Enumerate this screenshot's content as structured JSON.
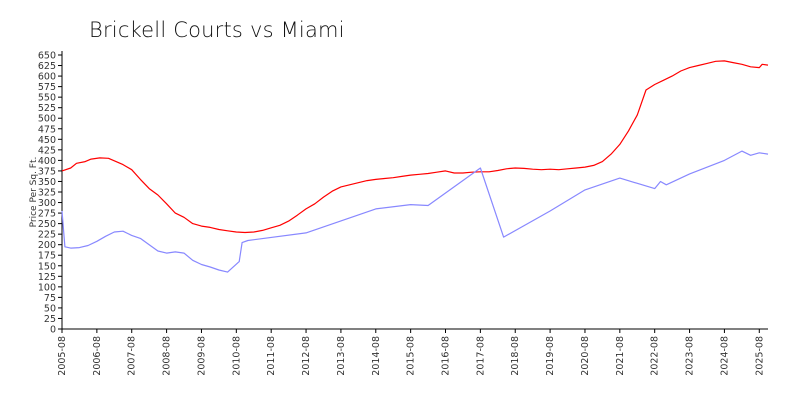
{
  "chart_data": {
    "type": "line",
    "title": "Brickell Courts vs Miami",
    "xlabel": "",
    "ylabel": "Price Per Sq. Ft.",
    "ylim": [
      0,
      650
    ],
    "xlim": [
      "2005-08",
      "2025-11"
    ],
    "grid": false,
    "legend": "none",
    "y_ticks": [
      0,
      25,
      50,
      75,
      100,
      125,
      150,
      175,
      200,
      225,
      250,
      275,
      300,
      325,
      350,
      375,
      400,
      425,
      450,
      475,
      500,
      525,
      550,
      575,
      600,
      625,
      650
    ],
    "x_ticks": [
      "2005-08",
      "2006-08",
      "2007-08",
      "2008-08",
      "2009-08",
      "2010-08",
      "2011-08",
      "2012-08",
      "2013-08",
      "2014-08",
      "2015-08",
      "2016-08",
      "2017-08",
      "2018-08",
      "2019-08",
      "2020-08",
      "2021-08",
      "2022-08",
      "2023-08",
      "2024-08",
      "2025-08"
    ],
    "series": [
      {
        "color": "#ff0000",
        "points": [
          [
            "2005-08",
            375
          ],
          [
            "2005-11",
            382
          ],
          [
            "2006-01",
            393
          ],
          [
            "2006-04",
            397
          ],
          [
            "2006-06",
            403
          ],
          [
            "2006-09",
            406
          ],
          [
            "2006-12",
            405
          ],
          [
            "2007-03",
            396
          ],
          [
            "2007-05",
            390
          ],
          [
            "2007-08",
            378
          ],
          [
            "2007-11",
            355
          ],
          [
            "2008-02",
            333
          ],
          [
            "2008-05",
            318
          ],
          [
            "2008-08",
            297
          ],
          [
            "2008-11",
            275
          ],
          [
            "2009-02",
            265
          ],
          [
            "2009-05",
            250
          ],
          [
            "2009-08",
            244
          ],
          [
            "2009-11",
            241
          ],
          [
            "2010-02",
            236
          ],
          [
            "2010-05",
            233
          ],
          [
            "2010-08",
            230
          ],
          [
            "2010-11",
            229
          ],
          [
            "2011-02",
            230
          ],
          [
            "2011-05",
            234
          ],
          [
            "2011-08",
            240
          ],
          [
            "2011-11",
            246
          ],
          [
            "2012-02",
            256
          ],
          [
            "2012-05",
            270
          ],
          [
            "2012-08",
            285
          ],
          [
            "2012-11",
            297
          ],
          [
            "2013-02",
            313
          ],
          [
            "2013-05",
            327
          ],
          [
            "2013-08",
            337
          ],
          [
            "2013-11",
            342
          ],
          [
            "2014-02",
            347
          ],
          [
            "2014-05",
            352
          ],
          [
            "2014-08",
            355
          ],
          [
            "2014-11",
            357
          ],
          [
            "2015-02",
            359
          ],
          [
            "2015-05",
            362
          ],
          [
            "2015-08",
            365
          ],
          [
            "2015-11",
            367
          ],
          [
            "2016-02",
            369
          ],
          [
            "2016-05",
            372
          ],
          [
            "2016-08",
            375
          ],
          [
            "2016-11",
            370
          ],
          [
            "2017-02",
            370
          ],
          [
            "2017-05",
            372
          ],
          [
            "2017-08",
            373
          ],
          [
            "2017-11",
            373
          ],
          [
            "2018-02",
            376
          ],
          [
            "2018-05",
            380
          ],
          [
            "2018-08",
            382
          ],
          [
            "2018-11",
            381
          ],
          [
            "2019-02",
            379
          ],
          [
            "2019-05",
            378
          ],
          [
            "2019-08",
            379
          ],
          [
            "2019-11",
            378
          ],
          [
            "2020-02",
            380
          ],
          [
            "2020-05",
            382
          ],
          [
            "2020-08",
            384
          ],
          [
            "2020-11",
            388
          ],
          [
            "2021-02",
            397
          ],
          [
            "2021-05",
            415
          ],
          [
            "2021-08",
            438
          ],
          [
            "2021-11",
            470
          ],
          [
            "2022-02",
            508
          ],
          [
            "2022-05",
            567
          ],
          [
            "2022-08",
            580
          ],
          [
            "2022-11",
            590
          ],
          [
            "2023-02",
            600
          ],
          [
            "2023-05",
            612
          ],
          [
            "2023-08",
            620
          ],
          [
            "2023-11",
            625
          ],
          [
            "2024-02",
            630
          ],
          [
            "2024-05",
            635
          ],
          [
            "2024-08",
            636
          ],
          [
            "2024-11",
            632
          ],
          [
            "2025-02",
            628
          ],
          [
            "2025-05",
            622
          ],
          [
            "2025-08",
            620
          ],
          [
            "2025-09",
            628
          ],
          [
            "2025-11",
            626
          ]
        ]
      },
      {
        "color": "#8888ff",
        "points": [
          [
            "2005-08",
            280
          ],
          [
            "2005-09",
            195
          ],
          [
            "2005-11",
            192
          ],
          [
            "2006-02",
            193
          ],
          [
            "2006-05",
            198
          ],
          [
            "2006-08",
            208
          ],
          [
            "2006-11",
            220
          ],
          [
            "2007-02",
            230
          ],
          [
            "2007-05",
            232
          ],
          [
            "2007-08",
            222
          ],
          [
            "2007-11",
            215
          ],
          [
            "2008-02",
            200
          ],
          [
            "2008-05",
            185
          ],
          [
            "2008-08",
            180
          ],
          [
            "2008-11",
            183
          ],
          [
            "2009-02",
            180
          ],
          [
            "2009-05",
            163
          ],
          [
            "2009-08",
            153
          ],
          [
            "2009-11",
            147
          ],
          [
            "2010-02",
            140
          ],
          [
            "2010-05",
            135
          ],
          [
            "2010-09",
            160
          ],
          [
            "2010-10",
            205
          ],
          [
            "2010-12",
            210
          ],
          [
            "2012-08",
            228
          ],
          [
            "2014-08",
            285
          ],
          [
            "2015-08",
            295
          ],
          [
            "2016-02",
            293
          ],
          [
            "2017-08",
            382
          ],
          [
            "2018-04",
            218
          ],
          [
            "2019-08",
            280
          ],
          [
            "2020-08",
            330
          ],
          [
            "2021-08",
            358
          ],
          [
            "2022-08",
            333
          ],
          [
            "2022-10",
            350
          ],
          [
            "2022-12",
            342
          ],
          [
            "2023-08",
            368
          ],
          [
            "2024-08",
            400
          ],
          [
            "2025-02",
            422
          ],
          [
            "2025-05",
            412
          ],
          [
            "2025-08",
            418
          ],
          [
            "2025-11",
            415
          ]
        ]
      }
    ]
  }
}
